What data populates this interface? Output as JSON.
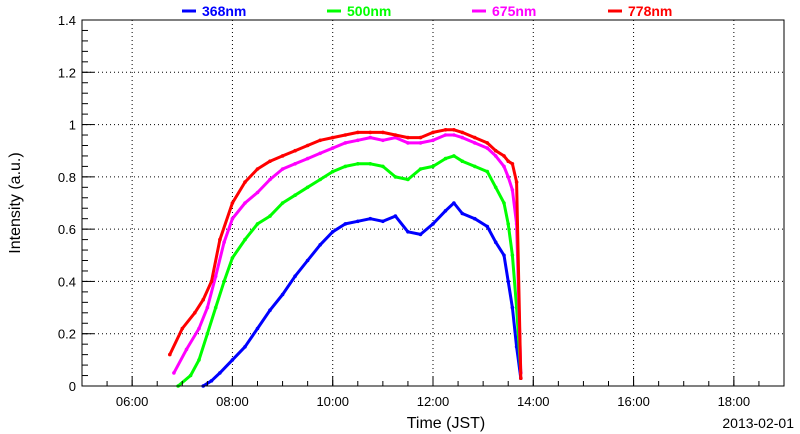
{
  "chart_data": {
    "type": "line",
    "title": "",
    "xlabel": "Time (JST)",
    "ylabel": "Intensity (a.u.)",
    "date": "2013-02-01",
    "xlim": [
      "05:00",
      "19:00"
    ],
    "ylim": [
      0,
      1.4
    ],
    "x_ticks": [
      "06:00",
      "08:00",
      "10:00",
      "12:00",
      "14:00",
      "16:00",
      "18:00"
    ],
    "y_ticks": [
      "0",
      "0.2",
      "0.4",
      "0.6",
      "0.8",
      "1",
      "1.2",
      "1.4"
    ],
    "grid": true,
    "legend_position": "top",
    "series": [
      {
        "name": "368nm",
        "color": "#0000ff",
        "x": [
          "07:25",
          "07:35",
          "07:45",
          "08:00",
          "08:15",
          "08:30",
          "08:45",
          "09:00",
          "09:15",
          "09:30",
          "09:45",
          "10:00",
          "10:15",
          "10:30",
          "10:45",
          "11:00",
          "11:15",
          "11:30",
          "11:45",
          "12:00",
          "12:15",
          "12:25",
          "12:35",
          "12:50",
          "13:05",
          "13:15",
          "13:25",
          "13:30",
          "13:35",
          "13:40",
          "13:45"
        ],
        "y": [
          0.0,
          0.02,
          0.05,
          0.1,
          0.15,
          0.22,
          0.29,
          0.35,
          0.42,
          0.48,
          0.54,
          0.59,
          0.62,
          0.63,
          0.64,
          0.63,
          0.65,
          0.59,
          0.58,
          0.62,
          0.67,
          0.7,
          0.66,
          0.64,
          0.61,
          0.55,
          0.5,
          0.4,
          0.3,
          0.15,
          0.03
        ]
      },
      {
        "name": "500nm",
        "color": "#00ff00",
        "x": [
          "06:55",
          "07:10",
          "07:20",
          "07:30",
          "07:40",
          "07:50",
          "08:00",
          "08:15",
          "08:30",
          "08:45",
          "09:00",
          "09:15",
          "09:30",
          "09:45",
          "10:00",
          "10:15",
          "10:30",
          "10:45",
          "11:00",
          "11:15",
          "11:30",
          "11:45",
          "12:00",
          "12:15",
          "12:25",
          "12:35",
          "12:50",
          "13:05",
          "13:15",
          "13:25",
          "13:30",
          "13:35",
          "13:40",
          "13:45"
        ],
        "y": [
          0.0,
          0.04,
          0.1,
          0.2,
          0.3,
          0.4,
          0.49,
          0.56,
          0.62,
          0.65,
          0.7,
          0.73,
          0.76,
          0.79,
          0.82,
          0.84,
          0.85,
          0.85,
          0.84,
          0.8,
          0.79,
          0.83,
          0.84,
          0.87,
          0.88,
          0.86,
          0.84,
          0.82,
          0.76,
          0.7,
          0.62,
          0.5,
          0.3,
          0.05
        ]
      },
      {
        "name": "675nm",
        "color": "#ff00ff",
        "x": [
          "06:50",
          "07:05",
          "07:20",
          "07:30",
          "07:40",
          "07:50",
          "08:00",
          "08:15",
          "08:30",
          "08:45",
          "09:00",
          "09:15",
          "09:30",
          "09:45",
          "10:00",
          "10:15",
          "10:30",
          "10:45",
          "11:00",
          "11:15",
          "11:30",
          "11:45",
          "12:00",
          "12:15",
          "12:25",
          "12:35",
          "12:50",
          "13:05",
          "13:15",
          "13:25",
          "13:30",
          "13:35",
          "13:40",
          "13:45"
        ],
        "y": [
          0.05,
          0.14,
          0.22,
          0.3,
          0.42,
          0.55,
          0.64,
          0.7,
          0.74,
          0.79,
          0.83,
          0.85,
          0.87,
          0.89,
          0.91,
          0.93,
          0.94,
          0.95,
          0.94,
          0.95,
          0.93,
          0.93,
          0.94,
          0.96,
          0.96,
          0.95,
          0.93,
          0.91,
          0.88,
          0.84,
          0.8,
          0.75,
          0.62,
          0.05
        ]
      },
      {
        "name": "778nm",
        "color": "#ff0000",
        "x": [
          "06:45",
          "07:00",
          "07:15",
          "07:25",
          "07:35",
          "07:45",
          "08:00",
          "08:15",
          "08:30",
          "08:45",
          "09:00",
          "09:15",
          "09:30",
          "09:45",
          "10:00",
          "10:15",
          "10:30",
          "10:45",
          "11:00",
          "11:15",
          "11:30",
          "11:45",
          "12:00",
          "12:15",
          "12:25",
          "12:35",
          "12:50",
          "13:05",
          "13:15",
          "13:25",
          "13:30",
          "13:35",
          "13:40",
          "13:45"
        ],
        "y": [
          0.12,
          0.22,
          0.28,
          0.33,
          0.4,
          0.56,
          0.7,
          0.78,
          0.83,
          0.86,
          0.88,
          0.9,
          0.92,
          0.94,
          0.95,
          0.96,
          0.97,
          0.97,
          0.97,
          0.96,
          0.95,
          0.95,
          0.97,
          0.98,
          0.98,
          0.97,
          0.95,
          0.93,
          0.9,
          0.88,
          0.86,
          0.85,
          0.78,
          0.03
        ]
      }
    ]
  }
}
